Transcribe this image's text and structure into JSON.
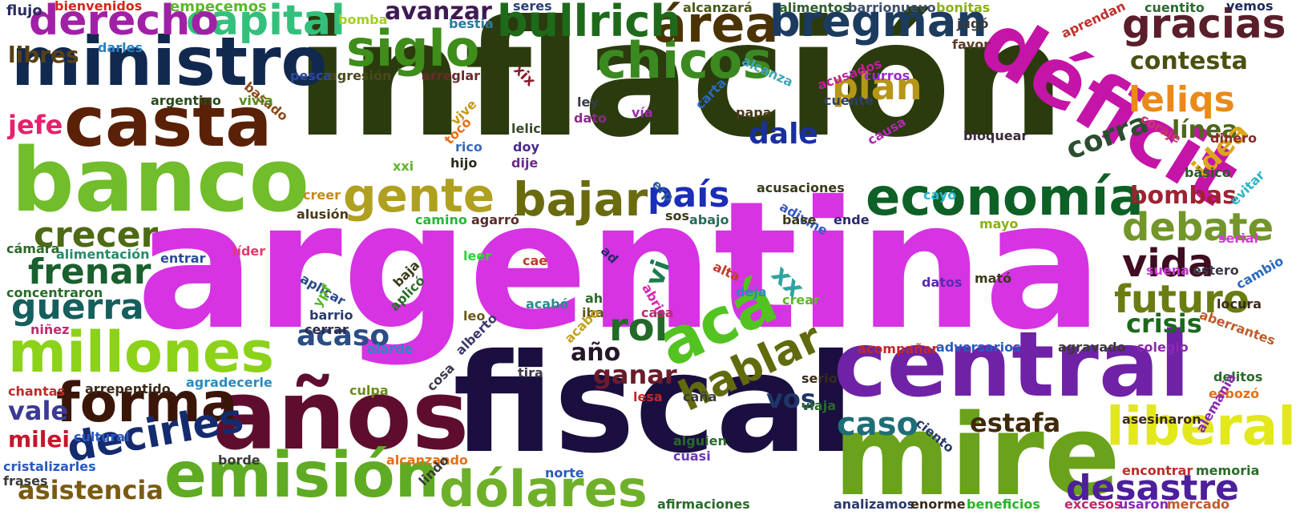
{
  "words": [
    {
      "text": "argentina",
      "color": "#d633e3",
      "rotate": 0
    },
    {
      "text": "inflación",
      "color": "#2b3b0e",
      "rotate": 0
    },
    {
      "text": "fiscal",
      "color": "#1a0f3f",
      "rotate": 0
    },
    {
      "text": "años",
      "color": "#5f0d2e",
      "rotate": 0
    },
    {
      "text": "central",
      "color": "#6f22a6",
      "rotate": 0
    },
    {
      "text": "mire",
      "color": "#6aa21b",
      "rotate": 0
    },
    {
      "text": "déficit",
      "color": "#c514a8",
      "rotate": 32
    },
    {
      "text": "banco",
      "color": "#71bd2b",
      "rotate": 0
    },
    {
      "text": "casta",
      "color": "#5a2107",
      "rotate": 0
    },
    {
      "text": "ministro",
      "color": "#11284f",
      "rotate": 0
    },
    {
      "text": "emisión",
      "color": "#5fab23",
      "rotate": 0
    },
    {
      "text": "acá",
      "color": "#53c321",
      "rotate": -25
    },
    {
      "text": "forma",
      "color": "#3a1609",
      "rotate": 0
    },
    {
      "text": "millones",
      "color": "#8cd219",
      "rotate": 0
    },
    {
      "text": "economía",
      "color": "#0d6026",
      "rotate": 0
    },
    {
      "text": "siglo",
      "color": "#3f8d1b",
      "rotate": 0
    },
    {
      "text": "chicos",
      "color": "#3b8a21",
      "rotate": 0
    },
    {
      "text": "gente",
      "color": "#b0a020",
      "rotate": 0
    },
    {
      "text": "bajar",
      "color": "#6a6b0e",
      "rotate": 0
    },
    {
      "text": "área",
      "color": "#4b3305",
      "rotate": 0
    },
    {
      "text": "dólares",
      "color": "#6fb02a",
      "rotate": 0
    },
    {
      "text": "liberal",
      "color": "#e3e81b",
      "rotate": 0
    },
    {
      "text": "hablar",
      "color": "#616b0d",
      "rotate": -25
    },
    {
      "text": "decirles",
      "color": "#152b6f",
      "rotate": -10
    },
    {
      "text": "bullrich",
      "color": "#1d6a1b",
      "rotate": 0
    },
    {
      "text": "bregman",
      "color": "#1b3b5f",
      "rotate": 0
    },
    {
      "text": "capital",
      "color": "#33c07c",
      "rotate": 0
    },
    {
      "text": "derecho",
      "color": "#a021a6",
      "rotate": 0
    },
    {
      "text": "gracias",
      "color": "#5a1e2a",
      "rotate": 0
    },
    {
      "text": "plan",
      "color": "#b69617",
      "rotate": 0
    },
    {
      "text": "leliqs",
      "color": "#ea8a1a",
      "rotate": 0
    },
    {
      "text": "país",
      "color": "#1c2db8",
      "rotate": 0
    },
    {
      "text": "frenar",
      "color": "#1a5f2e",
      "rotate": 0
    },
    {
      "text": "guerra",
      "color": "#155f5e",
      "rotate": 0
    },
    {
      "text": "crecer",
      "color": "#4d6a14",
      "rotate": 0
    },
    {
      "text": "rol",
      "color": "#236a2a",
      "rotate": 0
    },
    {
      "text": "vida",
      "color": "#3f0c21",
      "rotate": 0
    },
    {
      "text": "debate",
      "color": "#72962a",
      "rotate": 0
    },
    {
      "text": "futuro",
      "color": "#6a7d13",
      "rotate": 0
    },
    {
      "text": "desastre",
      "color": "#4d1f9b",
      "rotate": 0
    },
    {
      "text": "asistencia",
      "color": "#7a5b12",
      "rotate": 0
    },
    {
      "text": "avanzar",
      "color": "#3e1a53",
      "rotate": 0
    },
    {
      "text": "contesta",
      "color": "#4b5010",
      "rotate": 0
    },
    {
      "text": "línea",
      "color": "#50671c",
      "rotate": 0
    },
    {
      "text": "idea",
      "color": "#dba71b",
      "rotate": -45
    },
    {
      "text": "corra",
      "color": "#2b4e30",
      "rotate": -20
    },
    {
      "text": "bombas",
      "color": "#9f2232",
      "rotate": 0
    },
    {
      "text": "crisis",
      "color": "#1b6a1b",
      "rotate": 0
    },
    {
      "text": "estafa",
      "color": "#3f2a0a",
      "rotate": 0
    },
    {
      "text": "caso",
      "color": "#1e6e76",
      "rotate": 0
    },
    {
      "text": "vos",
      "color": "#1f3668",
      "rotate": 0
    },
    {
      "text": "ganar",
      "color": "#6a1c2c",
      "rotate": 0
    },
    {
      "text": "año",
      "color": "#26162a",
      "rotate": 0
    },
    {
      "text": "acaso",
      "color": "#2b4d86",
      "rotate": 0
    },
    {
      "text": "dale",
      "color": "#1a2f9f",
      "rotate": 0
    },
    {
      "text": "libres",
      "color": "#584013",
      "rotate": 0
    },
    {
      "text": "jefe",
      "color": "#e5216c",
      "rotate": 0
    },
    {
      "text": "vale",
      "color": "#3a3a95",
      "rotate": 0
    },
    {
      "text": "milei",
      "color": "#c6162c",
      "rotate": 0
    },
    {
      "text": "vi",
      "color": "#1c7b4f",
      "rotate": -70
    },
    {
      "text": "xx",
      "color": "#2fa4a0",
      "rotate": 45
    },
    {
      "text": "flujo",
      "color": "#2b2e5f",
      "rotate": 0
    },
    {
      "text": "bienvenidos",
      "color": "#d3271c",
      "rotate": 0
    },
    {
      "text": "empecemos",
      "color": "#5ab82a",
      "rotate": 0
    },
    {
      "text": "bomba",
      "color": "#a5cd22",
      "rotate": 0
    },
    {
      "text": "bestia",
      "color": "#2a7a9e",
      "rotate": 0
    },
    {
      "text": "seres",
      "color": "#2b3f74",
      "rotate": 0
    },
    {
      "text": "alcanzará",
      "color": "#4a5a1a",
      "rotate": 0
    },
    {
      "text": "alimentos",
      "color": "#2e5f2e",
      "rotate": 0
    },
    {
      "text": "barrionuevo",
      "color": "#3b4f6a",
      "rotate": 0
    },
    {
      "text": "bonitas",
      "color": "#8bb01b",
      "rotate": 0
    },
    {
      "text": "jugó",
      "color": "#3a3a3a",
      "rotate": 0
    },
    {
      "text": "aprendan",
      "color": "#c0302b",
      "rotate": -25
    },
    {
      "text": "cuentito",
      "color": "#2c6a2f",
      "rotate": 0
    },
    {
      "text": "vemos",
      "color": "#1e2a5a",
      "rotate": 0
    },
    {
      "text": "favor",
      "color": "#5a3a2a",
      "rotate": 0
    },
    {
      "text": "darles",
      "color": "#2a7fbf",
      "rotate": 0
    },
    {
      "text": "pesca",
      "color": "#2f4a9a",
      "rotate": 0
    },
    {
      "text": "agresión",
      "color": "#4a4a1a",
      "rotate": 0
    },
    {
      "text": "arreglar",
      "color": "#6a2a2a",
      "rotate": 0
    },
    {
      "text": "xix",
      "color": "#8a1a2a",
      "rotate": 45
    },
    {
      "text": "alcanza",
      "color": "#3fa5b5",
      "rotate": 25
    },
    {
      "text": "acusados",
      "color": "#c21f9a",
      "rotate": -20
    },
    {
      "text": "curros",
      "color": "#9a2ad6",
      "rotate": 0
    },
    {
      "text": "basado",
      "color": "#8a4a1a",
      "rotate": 40
    },
    {
      "text": "argentino",
      "color": "#2a4a1f",
      "rotate": 0
    },
    {
      "text": "vivía",
      "color": "#5a8a1a",
      "rotate": 0
    },
    {
      "text": "ley",
      "color": "#3a3a4a",
      "rotate": 0
    },
    {
      "text": "papa",
      "color": "#4a3a1a",
      "rotate": 0
    },
    {
      "text": "dato",
      "color": "#8a2a8a",
      "rotate": 0
    },
    {
      "text": "vía",
      "color": "#a02ab0",
      "rotate": 0
    },
    {
      "text": "carta",
      "color": "#2a6abf",
      "rotate": -45
    },
    {
      "text": "cuente",
      "color": "#2f3f6a",
      "rotate": 0
    },
    {
      "text": "bloquear",
      "color": "#3a2a3a",
      "rotate": 0
    },
    {
      "text": "coraje",
      "color": "#c23a6a",
      "rotate": 30
    },
    {
      "text": "dinero",
      "color": "#8a2a2a",
      "rotate": 0
    },
    {
      "text": "causa",
      "color": "#b02ab0",
      "rotate": -30
    },
    {
      "text": "vive",
      "color": "#c59a1a",
      "rotate": -45
    },
    {
      "text": "tocó",
      "color": "#e3701a",
      "rotate": -45
    },
    {
      "text": "rico",
      "color": "#3a6abf",
      "rotate": 0
    },
    {
      "text": "lelic",
      "color": "#3a4a2a",
      "rotate": 0
    },
    {
      "text": "doy",
      "color": "#4a2a8a",
      "rotate": 0
    },
    {
      "text": "dije",
      "color": "#6a2a8a",
      "rotate": 0
    },
    {
      "text": "hijo",
      "color": "#2a2a1a",
      "rotate": 0
    },
    {
      "text": "xxi",
      "color": "#61b52a",
      "rotate": 0
    },
    {
      "text": "erp",
      "color": "#2a5a9a",
      "rotate": 45
    },
    {
      "text": "cayó",
      "color": "#2ab5c5",
      "rotate": 0
    },
    {
      "text": "básico",
      "color": "#2a5a2a",
      "rotate": 0
    },
    {
      "text": "evitar",
      "color": "#2ab5c5",
      "rotate": -45
    },
    {
      "text": "acusaciones",
      "color": "#3a3a1a",
      "rotate": 0
    },
    {
      "text": "creer",
      "color": "#c58a1a",
      "rotate": 0
    },
    {
      "text": "alusión",
      "color": "#4a3a1a",
      "rotate": 0
    },
    {
      "text": "camino",
      "color": "#2ab53a",
      "rotate": 0
    },
    {
      "text": "agarró",
      "color": "#5a2a2a",
      "rotate": 0
    },
    {
      "text": "sos",
      "color": "#3a3a1a",
      "rotate": 0
    },
    {
      "text": "abajo",
      "color": "#2a6a5a",
      "rotate": 0
    },
    {
      "text": "adivine",
      "color": "#3a5abf",
      "rotate": 30
    },
    {
      "text": "base",
      "color": "#3a3a1a",
      "rotate": 0
    },
    {
      "text": "ende",
      "color": "#2a2a6a",
      "rotate": 0
    },
    {
      "text": "mayo",
      "color": "#8ab01a",
      "rotate": 0
    },
    {
      "text": "serial",
      "color": "#d83ad8",
      "rotate": 0
    },
    {
      "text": "líder",
      "color": "#e33a6a",
      "rotate": 0
    },
    {
      "text": "leer",
      "color": "#2ad53a",
      "rotate": 0
    },
    {
      "text": "cámara",
      "color": "#2a6a2a",
      "rotate": 0
    },
    {
      "text": "alimentación",
      "color": "#2a8a6a",
      "rotate": 0
    },
    {
      "text": "entrar",
      "color": "#2a4a9a",
      "rotate": 0
    },
    {
      "text": "ad",
      "color": "#2a2a6a",
      "rotate": 45
    },
    {
      "text": "cae",
      "color": "#c23a2a",
      "rotate": 0
    },
    {
      "text": "baja",
      "color": "#3a3a1a",
      "rotate": -45
    },
    {
      "text": "aplicó",
      "color": "#2a6a2a",
      "rotate": -45
    },
    {
      "text": "aplicar",
      "color": "#2a4a8a",
      "rotate": 30
    },
    {
      "text": "alta",
      "color": "#c23a2a",
      "rotate": 25
    },
    {
      "text": "suena",
      "color": "#c83ad8",
      "rotate": 0
    },
    {
      "text": "estero",
      "color": "#3a3a4a",
      "rotate": 0
    },
    {
      "text": "datos",
      "color": "#5a2ab0",
      "rotate": 0
    },
    {
      "text": "mató",
      "color": "#3a3a1a",
      "rotate": 0
    },
    {
      "text": "cambio",
      "color": "#2a6abf",
      "rotate": -30
    },
    {
      "text": "concentraron",
      "color": "#2a6a2a",
      "rotate": 0
    },
    {
      "text": "ypf",
      "color": "#5ab82a",
      "rotate": -60
    },
    {
      "text": "abrir",
      "color": "#d32ab0",
      "rotate": 60
    },
    {
      "text": "deja",
      "color": "#2a8abf",
      "rotate": 0
    },
    {
      "text": "crear",
      "color": "#5ab82a",
      "rotate": 0
    },
    {
      "text": "locura",
      "color": "#3a2a1a",
      "rotate": 0
    },
    {
      "text": "aberrantes",
      "color": "#c05a2a",
      "rotate": 20
    },
    {
      "text": "niñez",
      "color": "#c02a6a",
      "rotate": 0
    },
    {
      "text": "barrio",
      "color": "#2a3a6a",
      "rotate": 0
    },
    {
      "text": "cerrar",
      "color": "#2a2a4a",
      "rotate": 0
    },
    {
      "text": "ah",
      "color": "#2a6a2a",
      "rotate": 0
    },
    {
      "text": "iba",
      "color": "#5a5a1a",
      "rotate": 0
    },
    {
      "text": "acabó",
      "color": "#2a8a8a",
      "rotate": 0
    },
    {
      "text": "casa",
      "color": "#c02a6a",
      "rotate": 0
    },
    {
      "text": "leo",
      "color": "#6a5a1a",
      "rotate": 0
    },
    {
      "text": "alarde",
      "color": "#2a8abf",
      "rotate": 0
    },
    {
      "text": "alberto",
      "color": "#3a3a6a",
      "rotate": -45
    },
    {
      "text": "acabo",
      "color": "#c5a01a",
      "rotate": -45
    },
    {
      "text": "acompañar",
      "color": "#c02a2a",
      "rotate": 0
    },
    {
      "text": "adversarios",
      "color": "#2a5abf",
      "rotate": 0
    },
    {
      "text": "agravado",
      "color": "#3a3a3a",
      "rotate": 0
    },
    {
      "text": "colegio",
      "color": "#8a2ab0",
      "rotate": 0
    },
    {
      "text": "delitos",
      "color": "#2a6a2a",
      "rotate": 0
    },
    {
      "text": "esbozó",
      "color": "#e3701a",
      "rotate": 0
    },
    {
      "text": "chantas",
      "color": "#c02a2a",
      "rotate": 0
    },
    {
      "text": "arrepentido",
      "color": "#3a2a1a",
      "rotate": 0
    },
    {
      "text": "agradecerle",
      "color": "#2a8abf",
      "rotate": 0
    },
    {
      "text": "culpa",
      "color": "#6a8a1a",
      "rotate": 0
    },
    {
      "text": "cosa",
      "color": "#3a3a4a",
      "rotate": -45
    },
    {
      "text": "tira",
      "color": "#3a3a4a",
      "rotate": 0
    },
    {
      "text": "lesa",
      "color": "#c02a2a",
      "rotate": 0
    },
    {
      "text": "caña",
      "color": "#3a3a3a",
      "rotate": 0
    },
    {
      "text": "serio",
      "color": "#3a2a1a",
      "rotate": 0
    },
    {
      "text": "viaja",
      "color": "#2a6a2a",
      "rotate": 0
    },
    {
      "text": "asesinaron",
      "color": "#3a2a1a",
      "rotate": 0
    },
    {
      "text": "alemania",
      "color": "#8a2ab0",
      "rotate": -60
    },
    {
      "text": "cultural",
      "color": "#2a5abf",
      "rotate": 0
    },
    {
      "text": "ciento",
      "color": "#2a3a6a",
      "rotate": 40
    },
    {
      "text": "alguien",
      "color": "#2a6a2a",
      "rotate": 0
    },
    {
      "text": "cuasi",
      "color": "#6a3ab0",
      "rotate": 0
    },
    {
      "text": "borde",
      "color": "#3a3a3a",
      "rotate": 0
    },
    {
      "text": "alcanzando",
      "color": "#e3701a",
      "rotate": 0
    },
    {
      "text": "norte",
      "color": "#2a5abf",
      "rotate": 0
    },
    {
      "text": "lindo",
      "color": "#3a3a3a",
      "rotate": -45
    },
    {
      "text": "encontrar",
      "color": "#c02a2a",
      "rotate": 0
    },
    {
      "text": "memoria",
      "color": "#2a6a2a",
      "rotate": 0
    },
    {
      "text": "cristalizarles",
      "color": "#2a5abf",
      "rotate": 0
    },
    {
      "text": "frases",
      "color": "#3a3a3a",
      "rotate": 0
    },
    {
      "text": "afirmaciones",
      "color": "#2a6a2a",
      "rotate": 0
    },
    {
      "text": "analizamos",
      "color": "#2a3a6a",
      "rotate": 0
    },
    {
      "text": "enorme",
      "color": "#3a2a1a",
      "rotate": 0
    },
    {
      "text": "beneficios",
      "color": "#2ab52a",
      "rotate": 0
    },
    {
      "text": "excesos",
      "color": "#c02a6a",
      "rotate": 0
    },
    {
      "text": "usaron",
      "color": "#8a2ab0",
      "rotate": 0
    },
    {
      "text": "mercado",
      "color": "#c05a2a",
      "rotate": 0
    }
  ]
}
